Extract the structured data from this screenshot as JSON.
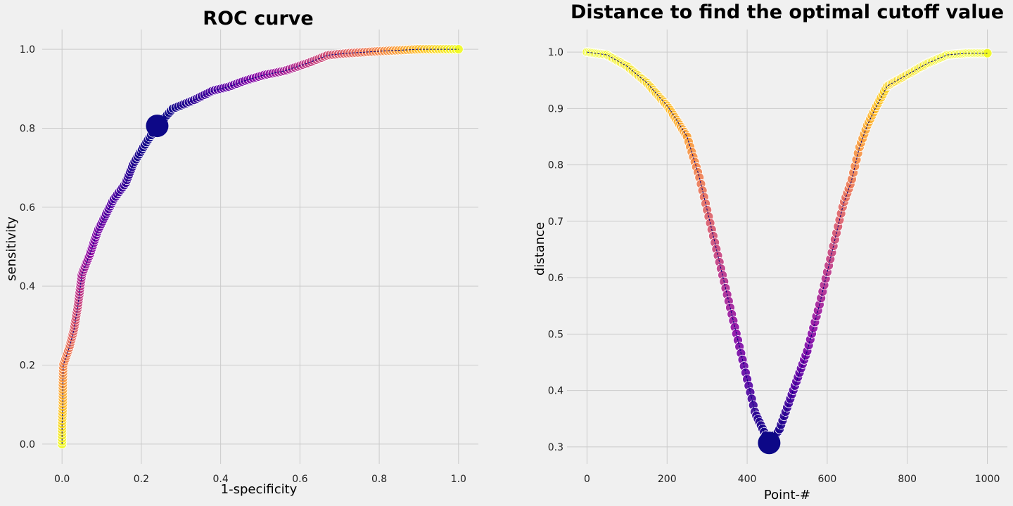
{
  "chart_data": [
    {
      "type": "scatter",
      "title": "ROC curve",
      "xlabel": "1-specificity",
      "ylabel": "sensitivity",
      "xlim": [
        -0.05,
        1.05
      ],
      "ylim": [
        -0.05,
        1.05
      ],
      "xticks": [
        "0.0",
        "0.2",
        "0.4",
        "0.6",
        "0.8",
        "1.0"
      ],
      "yticks": [
        "0.0",
        "0.2",
        "0.4",
        "0.6",
        "0.8",
        "1.0"
      ],
      "grid": true,
      "colormap": "plasma",
      "line_color": "#000080",
      "highlight_color": "#0d0887",
      "points": [
        [
          0.0,
          0.0
        ],
        [
          0.0,
          0.05
        ],
        [
          0.002,
          0.1
        ],
        [
          0.002,
          0.15
        ],
        [
          0.003,
          0.2
        ],
        [
          0.01,
          0.22
        ],
        [
          0.02,
          0.25
        ],
        [
          0.03,
          0.29
        ],
        [
          0.04,
          0.35
        ],
        [
          0.05,
          0.43
        ],
        [
          0.07,
          0.48
        ],
        [
          0.09,
          0.54
        ],
        [
          0.11,
          0.58
        ],
        [
          0.13,
          0.62
        ],
        [
          0.16,
          0.66
        ],
        [
          0.18,
          0.71
        ],
        [
          0.21,
          0.76
        ],
        [
          0.24,
          0.806
        ],
        [
          0.28,
          0.85
        ],
        [
          0.33,
          0.87
        ],
        [
          0.38,
          0.895
        ],
        [
          0.42,
          0.905
        ],
        [
          0.46,
          0.92
        ],
        [
          0.51,
          0.935
        ],
        [
          0.56,
          0.945
        ],
        [
          0.62,
          0.965
        ],
        [
          0.67,
          0.985
        ],
        [
          0.72,
          0.99
        ],
        [
          0.8,
          0.995
        ],
        [
          0.9,
          1.0
        ],
        [
          1.0,
          1.0
        ]
      ],
      "highlight_point": [
        0.24,
        0.806
      ]
    },
    {
      "type": "scatter",
      "title": "Distance to find the optimal cutoff value",
      "xlabel": "Point-#",
      "ylabel": "distance",
      "xlim": [
        -50,
        1050
      ],
      "ylim": [
        0.27,
        1.04
      ],
      "xticks": [
        "0",
        "200",
        "400",
        "600",
        "800",
        "1000"
      ],
      "yticks": [
        "0.3",
        "0.4",
        "0.5",
        "0.6",
        "0.7",
        "0.8",
        "0.9",
        "1.0"
      ],
      "grid": true,
      "colormap": "plasma",
      "line_color": "#000080",
      "highlight_color": "#0d0887",
      "points": [
        [
          0,
          1.0
        ],
        [
          50,
          0.995
        ],
        [
          100,
          0.975
        ],
        [
          150,
          0.945
        ],
        [
          200,
          0.905
        ],
        [
          210,
          0.895
        ],
        [
          250,
          0.85
        ],
        [
          280,
          0.78
        ],
        [
          300,
          0.72
        ],
        [
          320,
          0.66
        ],
        [
          340,
          0.6
        ],
        [
          360,
          0.54
        ],
        [
          380,
          0.48
        ],
        [
          400,
          0.42
        ],
        [
          420,
          0.36
        ],
        [
          440,
          0.33
        ],
        [
          455,
          0.307
        ],
        [
          480,
          0.33
        ],
        [
          500,
          0.37
        ],
        [
          520,
          0.41
        ],
        [
          550,
          0.47
        ],
        [
          580,
          0.55
        ],
        [
          600,
          0.61
        ],
        [
          620,
          0.67
        ],
        [
          640,
          0.73
        ],
        [
          660,
          0.77
        ],
        [
          680,
          0.83
        ],
        [
          700,
          0.87
        ],
        [
          720,
          0.9
        ],
        [
          750,
          0.94
        ],
        [
          800,
          0.96
        ],
        [
          850,
          0.98
        ],
        [
          900,
          0.995
        ],
        [
          950,
          0.998
        ],
        [
          1000,
          0.998
        ]
      ],
      "highlight_point": [
        455,
        0.307
      ]
    }
  ]
}
